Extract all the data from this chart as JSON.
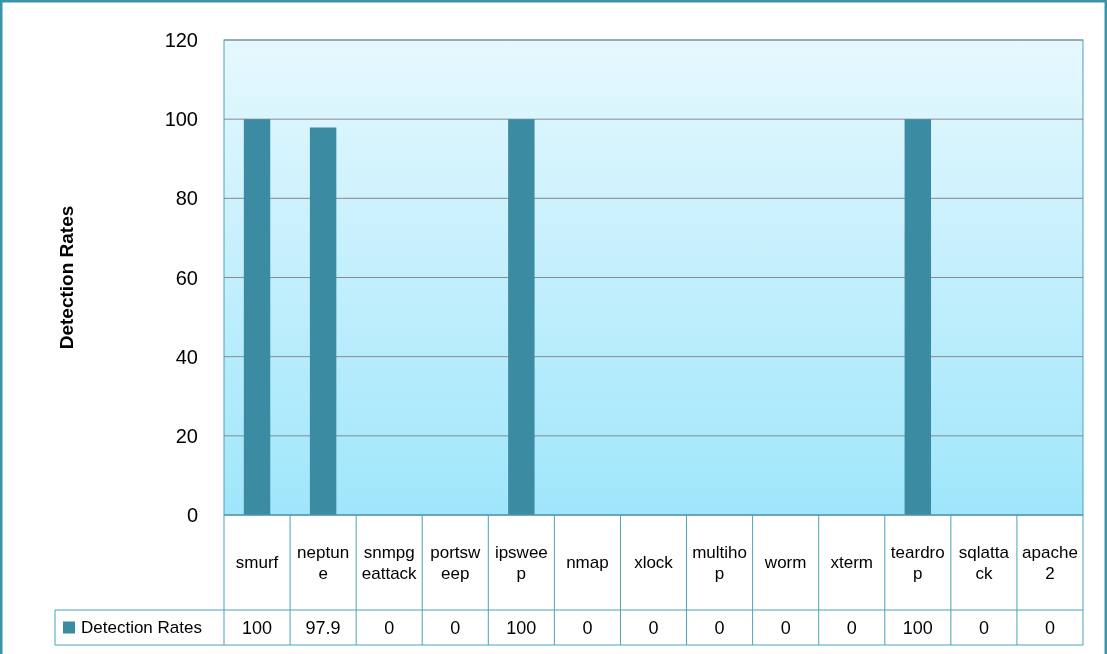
{
  "chart_data": {
    "type": "bar",
    "ylabel": "Detection Rates",
    "categories": [
      "smurf",
      "neptune",
      "snmpgeattack",
      "portsweep",
      "ipsweep",
      "nmap",
      "xlock",
      "multihop",
      "worm",
      "xterm",
      "teardrop",
      "sqlattack",
      "apache2"
    ],
    "series": [
      {
        "name": "Detection Rates",
        "color": "#3b8ca3",
        "values": [
          100,
          97.9,
          0,
          0,
          100,
          0,
          0,
          0,
          0,
          0,
          100,
          0,
          0
        ]
      }
    ],
    "ylim": [
      0,
      120
    ],
    "yticks": [
      0,
      20,
      40,
      60,
      80,
      100,
      120
    ],
    "grid": "y",
    "legend": "bottom",
    "data_labels": true
  }
}
